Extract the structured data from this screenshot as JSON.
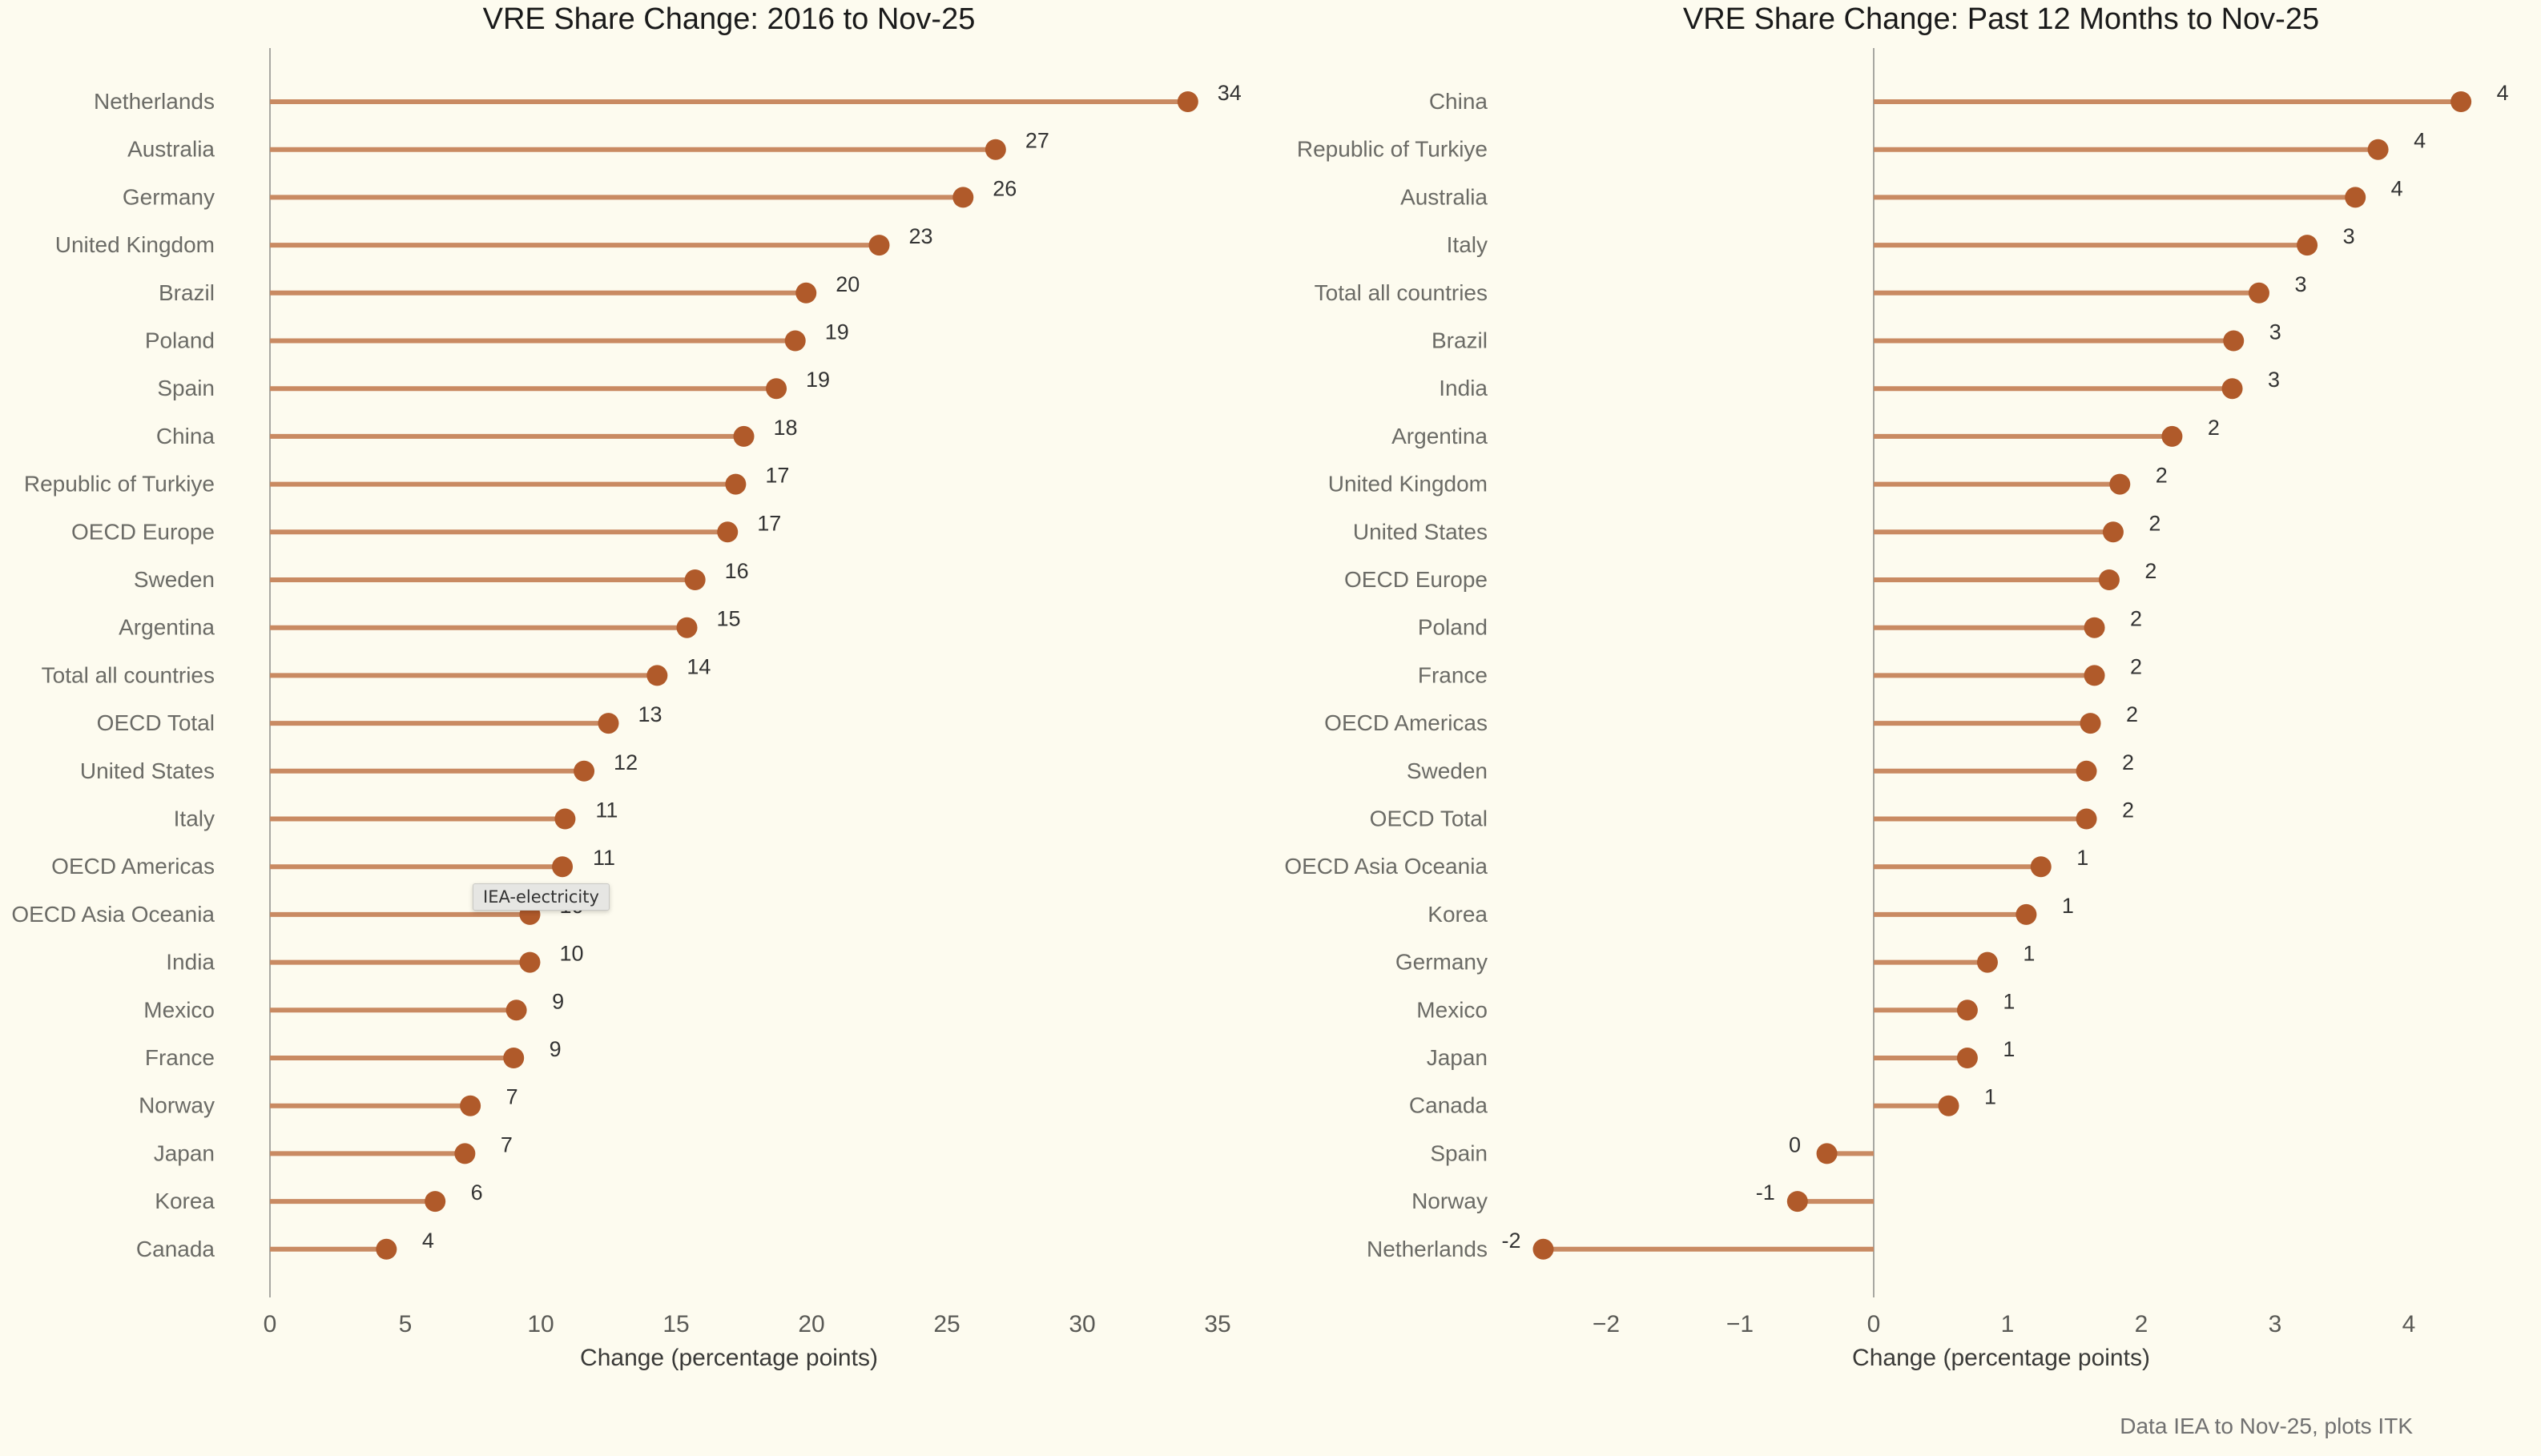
{
  "chart_data": [
    {
      "type": "lollipop",
      "title": "VRE Share Change: 2016 to Nov-25",
      "xlabel": "Change (percentage points)",
      "xlim": [
        0,
        36
      ],
      "xticks": [
        0,
        5,
        10,
        15,
        20,
        25,
        30,
        35
      ],
      "categories": [
        "Netherlands",
        "Australia",
        "Germany",
        "United Kingdom",
        "Brazil",
        "Poland",
        "Spain",
        "China",
        "Republic of Turkiye",
        "OECD Europe",
        "Sweden",
        "Argentina",
        "Total all countries",
        "OECD Total",
        "United States",
        "Italy",
        "OECD Americas",
        "OECD Asia Oceania",
        "India",
        "Mexico",
        "France",
        "Norway",
        "Japan",
        "Korea",
        "Canada"
      ],
      "values": [
        33.9,
        26.8,
        25.6,
        22.5,
        19.8,
        19.4,
        18.7,
        17.5,
        17.2,
        16.9,
        15.7,
        15.4,
        14.3,
        12.5,
        11.6,
        10.9,
        10.8,
        9.6,
        9.6,
        9.1,
        9.0,
        7.4,
        7.2,
        6.1,
        4.3
      ],
      "labels": [
        "34",
        "27",
        "26",
        "23",
        "20",
        "19",
        "19",
        "18",
        "17",
        "17",
        "16",
        "15",
        "14",
        "13",
        "12",
        "11",
        "11",
        "10",
        "10",
        "9",
        "9",
        "7",
        "7",
        "6",
        "4"
      ]
    },
    {
      "type": "lollipop",
      "title": "VRE Share Change: Past 12 Months to Nov-25",
      "xlabel": "Change (percentage points)",
      "xlim": [
        -2.6,
        4.6
      ],
      "xticks": [
        -2,
        -1,
        0,
        1,
        2,
        3,
        4
      ],
      "xtick_labels": [
        "−2",
        "−1",
        "0",
        "1",
        "2",
        "3",
        "4"
      ],
      "categories": [
        "China",
        "Republic of Turkiye",
        "Australia",
        "Italy",
        "Total all countries",
        "Brazil",
        "India",
        "Argentina",
        "United Kingdom",
        "United States",
        "OECD Europe",
        "Poland",
        "France",
        "OECD Americas",
        "Sweden",
        "OECD Total",
        "OECD Asia Oceania",
        "Korea",
        "Germany",
        "Mexico",
        "Japan",
        "Canada",
        "Spain",
        "Norway",
        "Netherlands"
      ],
      "values": [
        4.39,
        3.77,
        3.6,
        3.24,
        2.88,
        2.69,
        2.68,
        2.23,
        1.84,
        1.79,
        1.76,
        1.65,
        1.65,
        1.62,
        1.59,
        1.59,
        1.25,
        1.14,
        0.85,
        0.7,
        0.7,
        0.56,
        -0.35,
        -0.57,
        -2.47
      ],
      "labels": [
        "4",
        "4",
        "4",
        "3",
        "3",
        "3",
        "3",
        "2",
        "2",
        "2",
        "2",
        "2",
        "2",
        "2",
        "2",
        "2",
        "1",
        "1",
        "1",
        "1",
        "1",
        "1",
        "0",
        "-1",
        "-2"
      ]
    }
  ],
  "footer": "Data IEA to Nov-25, plots ITK",
  "tooltip": "IEA-electricity",
  "colors": {
    "stem": "#c98a62",
    "dot": "#b05a2a",
    "axis": "#a8a8a2",
    "background": "#fdfbef"
  }
}
